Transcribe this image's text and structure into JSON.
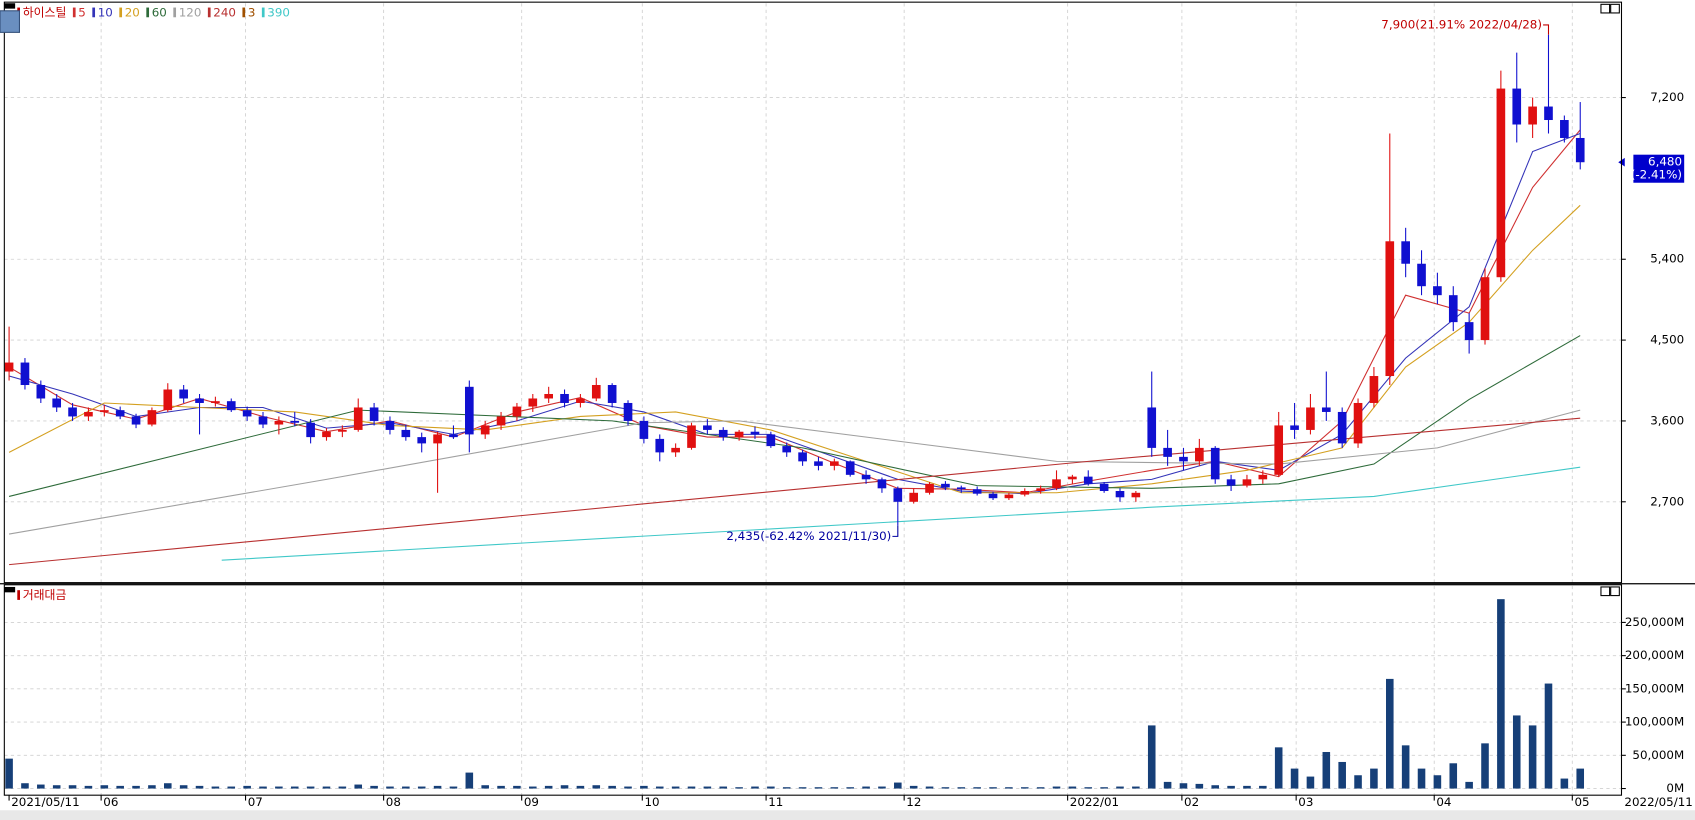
{
  "chart_data": [
    {
      "type": "candlestick",
      "title": "하이스틸",
      "title_color": "#c00000",
      "up_color": "#e01010",
      "down_color": "#1010d0",
      "xlim": [
        -0.3,
        101.6
      ],
      "ylim": [
        1800,
        8250
      ],
      "yticks": [
        {
          "value": 2700,
          "label": "2,700"
        },
        {
          "value": 3600,
          "label": "3,600"
        },
        {
          "value": 4500,
          "label": "4,500"
        },
        {
          "value": 5400,
          "label": "5,400"
        },
        {
          "value": 7200,
          "label": "7,200"
        }
      ],
      "grid": true,
      "open": [
        4150,
        4250,
        4000,
        3850,
        3750,
        3650,
        3700,
        3720,
        3650,
        3560,
        3720,
        3950,
        3850,
        3800,
        3820,
        3720,
        3650,
        3560,
        3600,
        3580,
        3420,
        3480,
        3500,
        3750,
        3600,
        3500,
        3420,
        3350,
        3450,
        3980,
        3450,
        3550,
        3650,
        3760,
        3850,
        3900,
        3800,
        3850,
        4000,
        3800,
        3600,
        3400,
        3250,
        3300,
        3550,
        3500,
        3420,
        3480,
        3450,
        3320,
        3250,
        3150,
        3100,
        3150,
        3000,
        2950,
        2850,
        2700,
        2800,
        2900,
        2860,
        2840,
        2790,
        2740,
        2780,
        2820,
        2850,
        2950,
        2980,
        2900,
        2820,
        2750,
        3750,
        3300,
        3200,
        3150,
        3300,
        2950,
        2880,
        2950,
        3000,
        3550,
        3500,
        3750,
        3700,
        3350,
        3800,
        4100,
        5600,
        5350,
        5100,
        5000,
        4700,
        4500,
        5200,
        7300,
        6900,
        7100,
        6950,
        6750
      ],
      "high": [
        4650,
        4300,
        4050,
        3900,
        3800,
        3750,
        3780,
        3760,
        3680,
        3750,
        4020,
        4000,
        3900,
        3870,
        3850,
        3760,
        3700,
        3650,
        3700,
        3620,
        3520,
        3550,
        3850,
        3800,
        3650,
        3560,
        3470,
        3480,
        3550,
        4050,
        3600,
        3700,
        3800,
        3900,
        3980,
        3950,
        3900,
        4080,
        4020,
        3830,
        3650,
        3450,
        3350,
        3580,
        3620,
        3530,
        3500,
        3540,
        3480,
        3360,
        3280,
        3200,
        3180,
        3160,
        3050,
        2970,
        2870,
        2850,
        2920,
        2930,
        2880,
        2870,
        2810,
        2800,
        2850,
        2880,
        3050,
        3000,
        3050,
        2920,
        2850,
        2820,
        4150,
        3500,
        3300,
        3400,
        3320,
        3000,
        3000,
        3050,
        3700,
        3800,
        3900,
        4150,
        3750,
        3850,
        4200,
        6800,
        5750,
        5500,
        5250,
        5100,
        4800,
        5300,
        7500,
        7700,
        7200,
        7900,
        7000,
        7150
      ],
      "low": [
        4050,
        3950,
        3800,
        3700,
        3600,
        3600,
        3650,
        3620,
        3520,
        3540,
        3700,
        3800,
        3450,
        3760,
        3700,
        3600,
        3520,
        3450,
        3540,
        3350,
        3380,
        3420,
        3480,
        3550,
        3450,
        3380,
        3250,
        2800,
        3400,
        3250,
        3400,
        3500,
        3600,
        3700,
        3800,
        3750,
        3750,
        3820,
        3750,
        3550,
        3350,
        3150,
        3200,
        3280,
        3450,
        3380,
        3380,
        3400,
        3300,
        3200,
        3100,
        3050,
        3050,
        2980,
        2900,
        2800,
        2435,
        2680,
        2780,
        2830,
        2800,
        2770,
        2720,
        2720,
        2760,
        2790,
        2830,
        2900,
        2880,
        2800,
        2700,
        2700,
        3200,
        3100,
        3050,
        3100,
        2900,
        2820,
        2860,
        2900,
        2980,
        3400,
        3450,
        3600,
        3300,
        3300,
        3750,
        4000,
        5200,
        5000,
        4900,
        4600,
        4350,
        4450,
        5150,
        6700,
        6750,
        6800,
        6700,
        6400
      ],
      "close": [
        4250,
        4000,
        3850,
        3750,
        3650,
        3700,
        3720,
        3650,
        3560,
        3720,
        3950,
        3850,
        3800,
        3820,
        3720,
        3650,
        3560,
        3600,
        3580,
        3420,
        3480,
        3500,
        3750,
        3600,
        3500,
        3420,
        3350,
        3450,
        3420,
        3450,
        3550,
        3650,
        3760,
        3850,
        3900,
        3800,
        3850,
        4000,
        3800,
        3600,
        3400,
        3250,
        3300,
        3550,
        3500,
        3420,
        3480,
        3450,
        3320,
        3250,
        3150,
        3100,
        3150,
        3000,
        2950,
        2850,
        2700,
        2800,
        2900,
        2860,
        2840,
        2790,
        2740,
        2780,
        2820,
        2850,
        2950,
        2980,
        2900,
        2820,
        2750,
        2800,
        3300,
        3200,
        3150,
        3300,
        2950,
        2880,
        2950,
        3000,
        3550,
        3500,
        3750,
        3700,
        3350,
        3800,
        4100,
        5600,
        5350,
        5100,
        5000,
        4700,
        4500,
        5200,
        7300,
        6900,
        7100,
        6950,
        6750,
        6480
      ],
      "series": [
        {
          "name": "5",
          "color": "#d03030",
          "x": [
            0,
            4,
            8,
            12,
            16,
            20,
            24,
            28,
            32,
            36,
            40,
            44,
            48,
            52,
            56,
            60,
            64,
            68,
            72,
            76,
            80,
            84,
            88,
            92,
            96,
            99
          ],
          "values": [
            4200,
            3780,
            3620,
            3850,
            3650,
            3480,
            3600,
            3420,
            3700,
            3860,
            3550,
            3420,
            3420,
            3130,
            2850,
            2840,
            2800,
            2930,
            3050,
            3150,
            2980,
            3600,
            5000,
            4800,
            6200,
            6840
          ]
        },
        {
          "name": "10",
          "color": "#3434b8",
          "x": [
            0,
            4,
            8,
            12,
            16,
            20,
            24,
            28,
            32,
            36,
            40,
            44,
            48,
            52,
            56,
            60,
            64,
            68,
            72,
            76,
            80,
            84,
            88,
            92,
            96,
            99
          ],
          "values": [
            4100,
            3900,
            3650,
            3750,
            3750,
            3520,
            3580,
            3450,
            3600,
            3820,
            3700,
            3450,
            3450,
            3200,
            2950,
            2820,
            2790,
            2900,
            2950,
            3150,
            3050,
            3450,
            4300,
            4870,
            6600,
            6800
          ]
        },
        {
          "name": "20",
          "color": "#d4a020",
          "x": [
            0,
            6,
            12,
            18,
            24,
            30,
            36,
            42,
            48,
            54,
            60,
            66,
            72,
            78,
            84,
            88,
            92,
            96,
            99
          ],
          "values": [
            3250,
            3800,
            3750,
            3700,
            3550,
            3500,
            3650,
            3700,
            3500,
            3150,
            2800,
            2800,
            2900,
            3050,
            3300,
            4200,
            4700,
            5500,
            6000
          ]
        },
        {
          "name": "60",
          "color": "#2e6b3a",
          "x": [
            0,
            22,
            38,
            50,
            61,
            72,
            80,
            86,
            92,
            99
          ],
          "values": [
            2760,
            3720,
            3600,
            3300,
            2880,
            2850,
            2900,
            3120,
            3840,
            4550
          ]
        },
        {
          "name": "120",
          "color": "#a0a0a0",
          "x": [
            0,
            20,
            40,
            46,
            66,
            80,
            90,
            99
          ],
          "values": [
            2340,
            2950,
            3580,
            3600,
            3150,
            3120,
            3300,
            3720
          ]
        },
        {
          "name": "240",
          "color": "#b83030",
          "x": [
            0,
            68,
            99
          ],
          "values": [
            2000,
            3150,
            3630
          ]
        },
        {
          "name": "3",
          "color": "#a05000"
        },
        {
          "name": "390",
          "color": "#40c8c8",
          "x": [
            13.4,
            72,
            86,
            99
          ],
          "values": [
            2050,
            2640,
            2760,
            3085
          ]
        }
      ],
      "annotations": [
        {
          "text": "7,900(21.91% 2022/04/28)",
          "x": 97,
          "value": 7900,
          "color": "#c00000"
        },
        {
          "text": "2,435(-62.42% 2021/11/30)",
          "x": 56,
          "value": 2435,
          "color": "#0000a0"
        }
      ],
      "last_price": {
        "value": 6480,
        "label": "6,480",
        "change": "(-2.41%)",
        "color": "#0000cc"
      }
    },
    {
      "type": "bar",
      "title": "거래대금",
      "title_color": "#c00000",
      "color": "#163f78",
      "xlim": [
        -0.3,
        101.6
      ],
      "ylim": [
        -10000,
        305000
      ],
      "yticks": [
        {
          "value": 0,
          "label": "0M"
        },
        {
          "value": 50000,
          "label": "50,000M"
        },
        {
          "value": 100000,
          "label": "100,000M"
        },
        {
          "value": 150000,
          "label": "150,000M"
        },
        {
          "value": 200000,
          "label": "200,000M"
        },
        {
          "value": 250000,
          "label": "250,000M"
        }
      ],
      "grid": true,
      "xticks": [
        {
          "value": 0,
          "label": "2021/05/11"
        },
        {
          "value": 5.8,
          "label": "06"
        },
        {
          "value": 14.9,
          "label": "07"
        },
        {
          "value": 23.6,
          "label": "08"
        },
        {
          "value": 32.3,
          "label": "09"
        },
        {
          "value": 39.9,
          "label": "10"
        },
        {
          "value": 47.7,
          "label": "11"
        },
        {
          "value": 56.4,
          "label": "12"
        },
        {
          "value": 66.7,
          "label": "2022/01"
        },
        {
          "value": 73.9,
          "label": "02"
        },
        {
          "value": 81.1,
          "label": "03"
        },
        {
          "value": 89.8,
          "label": "04"
        },
        {
          "value": 98.5,
          "label": "05"
        },
        {
          "value": 103.6,
          "label": "2022/05/11"
        }
      ],
      "values": [
        45000,
        8000,
        6000,
        5000,
        5000,
        4000,
        5000,
        4000,
        4000,
        5000,
        8000,
        5000,
        4000,
        3000,
        3000,
        4000,
        3000,
        3000,
        3000,
        3000,
        3000,
        3000,
        6000,
        4000,
        3000,
        3000,
        3000,
        4000,
        3000,
        24000,
        5000,
        4000,
        4000,
        3000,
        4000,
        5000,
        4000,
        5000,
        4000,
        3000,
        4000,
        3000,
        3000,
        3000,
        3000,
        3000,
        2000,
        3000,
        3000,
        2000,
        2000,
        2000,
        2000,
        2000,
        3000,
        3000,
        9000,
        4000,
        3000,
        2000,
        2000,
        2000,
        2000,
        2000,
        2000,
        2000,
        3000,
        3000,
        2000,
        2000,
        3000,
        3000,
        95000,
        10000,
        8000,
        7000,
        5000,
        4000,
        4000,
        4000,
        62000,
        30000,
        18000,
        55000,
        40000,
        20000,
        30000,
        165000,
        65000,
        30000,
        20000,
        38000,
        10000,
        68000,
        285000,
        110000,
        95000,
        158000,
        15000,
        30000
      ]
    }
  ]
}
